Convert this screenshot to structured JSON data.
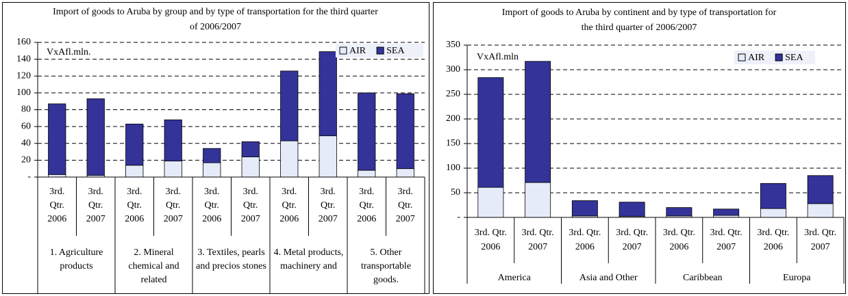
{
  "chart_data": [
    {
      "type": "stacked_bar",
      "title": "Import of goods to Aruba by group and by type of transportation for the third quarter of 2006/2007",
      "unit_label": "VxAfl.mln.",
      "categories": [
        "3rd. Qtr. 2006",
        "3rd. Qtr. 2007",
        "3rd. Qtr. 2006",
        "3rd. Qtr. 2007",
        "3rd. Qtr. 2006",
        "3rd. Qtr. 2007",
        "3rd. Qtr. 2006",
        "3rd. Qtr. 2007",
        "3rd. Qtr. 2006",
        "3rd. Qtr. 2007"
      ],
      "groups": [
        "1. Agriculture products",
        "2. Mineral chemical and related",
        "3. Textiles, pearls and precios stones",
        "4. Metal products, machinery and",
        "5. Other transportable goods."
      ],
      "series": [
        {
          "name": "AIR",
          "color": "#e6ebfa",
          "values": [
            3,
            2,
            14,
            19,
            17,
            24,
            43,
            49,
            8,
            10
          ]
        },
        {
          "name": "SEA",
          "color": "#333399",
          "values": [
            84,
            91,
            49,
            49,
            17,
            18,
            83,
            100,
            92,
            89
          ]
        }
      ],
      "ylim": [
        0,
        160
      ],
      "yticks": [
        {
          "value": 0,
          "label": "-"
        },
        20,
        40,
        60,
        80,
        100,
        120,
        140,
        160
      ],
      "grid": true,
      "legend": "upper right"
    },
    {
      "type": "stacked_bar",
      "title": "Import of goods to Aruba by continent and by type of transportation for the third quarter of 2006/2007",
      "unit_label": "VxAfl.mln",
      "categories": [
        "3rd. Qtr. 2006",
        "3rd. Qtr. 2007",
        "3rd. Qtr. 2006",
        "3rd. Qtr. 2007",
        "3rd. Qtr. 2006",
        "3rd. Qtr. 2007",
        "3rd. Qtr. 2006",
        "3rd. Qtr. 2007"
      ],
      "groups": [
        "America",
        "Asia and Other",
        "Caribbean",
        "Europa"
      ],
      "series": [
        {
          "name": "AIR",
          "color": "#e6ebfa",
          "values": [
            61,
            71,
            3,
            2,
            3,
            4,
            18,
            28
          ]
        },
        {
          "name": "SEA",
          "color": "#333399",
          "values": [
            223,
            246,
            31,
            29,
            17,
            13,
            51,
            57
          ]
        }
      ],
      "ylim": [
        0,
        350
      ],
      "yticks": [
        {
          "value": 0,
          "label": "-"
        },
        50,
        100,
        150,
        200,
        250,
        300,
        350
      ],
      "grid": true,
      "legend": "upper right"
    }
  ]
}
